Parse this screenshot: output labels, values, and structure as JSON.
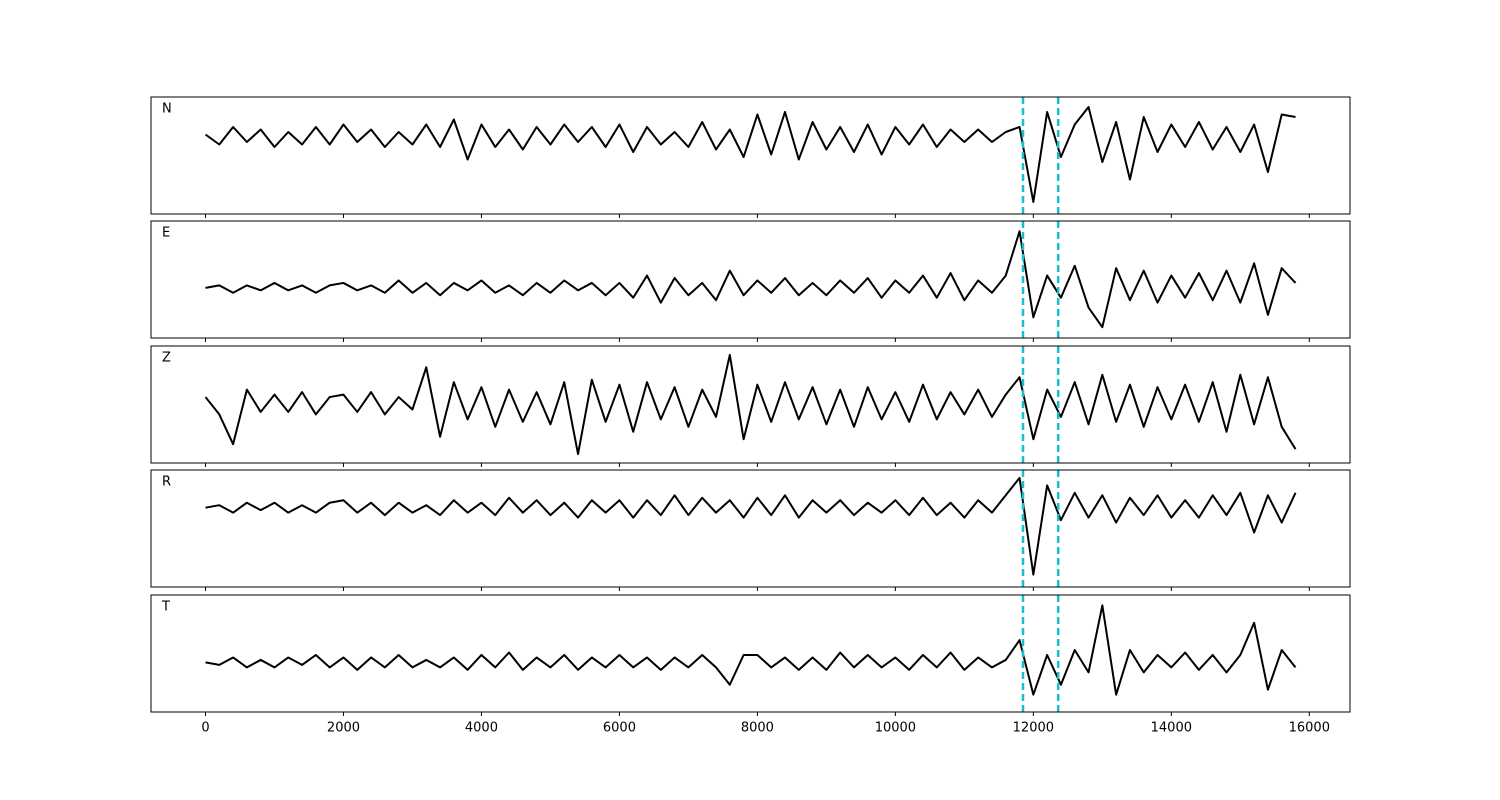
{
  "chart_data": [
    {
      "type": "line",
      "label": "N",
      "color": "#000000",
      "marker_color": "#17becf",
      "markers": [
        11850,
        12360
      ],
      "xlim": [
        -790,
        16590
      ],
      "ylim": [
        -3.08,
        1.6
      ],
      "x": [
        0,
        200,
        400,
        600,
        800,
        1000,
        1200,
        1400,
        1600,
        1800,
        2000,
        2200,
        2400,
        2600,
        2800,
        3000,
        3200,
        3400,
        3600,
        3800,
        4000,
        4200,
        4400,
        4600,
        4800,
        5000,
        5200,
        5400,
        5600,
        5800,
        6000,
        6200,
        6400,
        6600,
        6800,
        7000,
        7200,
        7400,
        7600,
        7800,
        8000,
        8200,
        8400,
        8600,
        8800,
        9000,
        9200,
        9400,
        9600,
        9800,
        10000,
        10200,
        10400,
        10600,
        10800,
        11000,
        11200,
        11400,
        11600,
        11800,
        12000,
        12200,
        12400,
        12600,
        12800,
        13000,
        13200,
        13400,
        13600,
        13800,
        14000,
        14200,
        14400,
        14600,
        14800,
        15000,
        15200,
        15400,
        15600,
        15800
      ],
      "values": [
        0.1,
        -0.3,
        0.4,
        -0.2,
        0.3,
        -0.4,
        0.2,
        -0.3,
        0.4,
        -0.3,
        0.5,
        -0.2,
        0.3,
        -0.4,
        0.2,
        -0.3,
        0.5,
        -0.4,
        0.7,
        -0.9,
        0.5,
        -0.4,
        0.3,
        -0.5,
        0.4,
        -0.3,
        0.5,
        -0.2,
        0.4,
        -0.4,
        0.5,
        -0.6,
        0.4,
        -0.3,
        0.2,
        -0.4,
        0.6,
        -0.5,
        0.3,
        -0.8,
        0.9,
        -0.7,
        1.0,
        -0.9,
        0.6,
        -0.5,
        0.4,
        -0.6,
        0.5,
        -0.7,
        0.4,
        -0.3,
        0.5,
        -0.4,
        0.3,
        -0.2,
        0.3,
        -0.2,
        0.2,
        0.4,
        -2.6,
        1.0,
        -0.8,
        0.5,
        1.2,
        -1.0,
        0.6,
        -1.7,
        0.8,
        -0.6,
        0.5,
        -0.4,
        0.6,
        -0.5,
        0.4,
        -0.6,
        0.5,
        -1.4,
        0.9,
        0.8
      ]
    },
    {
      "type": "line",
      "label": "E",
      "color": "#000000",
      "marker_color": "#17becf",
      "markers": [
        11850,
        12360
      ],
      "xlim": [
        -790,
        16590
      ],
      "ylim": [
        -2.04,
        2.72
      ],
      "x": [
        0,
        200,
        400,
        600,
        800,
        1000,
        1200,
        1400,
        1600,
        1800,
        2000,
        2200,
        2400,
        2600,
        2800,
        3000,
        3200,
        3400,
        3600,
        3800,
        4000,
        4200,
        4400,
        4600,
        4800,
        5000,
        5200,
        5400,
        5600,
        5800,
        6000,
        6200,
        6400,
        6600,
        6800,
        7000,
        7200,
        7400,
        7600,
        7800,
        8000,
        8200,
        8400,
        8600,
        8800,
        9000,
        9200,
        9400,
        9600,
        9800,
        10000,
        10200,
        10400,
        10600,
        10800,
        11000,
        11200,
        11400,
        11600,
        11800,
        12000,
        12200,
        12400,
        12600,
        12800,
        13000,
        13200,
        13400,
        13600,
        13800,
        14000,
        14200,
        14400,
        14600,
        14800,
        15000,
        15200,
        15400,
        15600,
        15800
      ],
      "values": [
        0.0,
        0.1,
        -0.2,
        0.1,
        -0.1,
        0.2,
        -0.1,
        0.1,
        -0.2,
        0.1,
        0.2,
        -0.1,
        0.1,
        -0.2,
        0.3,
        -0.2,
        0.2,
        -0.3,
        0.2,
        -0.1,
        0.3,
        -0.2,
        0.1,
        -0.3,
        0.2,
        -0.2,
        0.3,
        -0.1,
        0.2,
        -0.3,
        0.2,
        -0.4,
        0.5,
        -0.6,
        0.4,
        -0.3,
        0.2,
        -0.5,
        0.7,
        -0.3,
        0.3,
        -0.2,
        0.4,
        -0.3,
        0.2,
        -0.3,
        0.3,
        -0.2,
        0.4,
        -0.4,
        0.3,
        -0.2,
        0.5,
        -0.4,
        0.6,
        -0.5,
        0.3,
        -0.2,
        0.5,
        2.3,
        -1.2,
        0.5,
        -0.4,
        0.9,
        -0.8,
        -1.6,
        0.8,
        -0.5,
        0.7,
        -0.6,
        0.5,
        -0.4,
        0.6,
        -0.5,
        0.7,
        -0.6,
        1.0,
        -1.1,
        0.8,
        0.2
      ]
    },
    {
      "type": "line",
      "label": "Z",
      "color": "#000000",
      "marker_color": "#17becf",
      "markers": [
        11850,
        12360
      ],
      "xlim": [
        -790,
        16590
      ],
      "ylim": [
        -2.36,
        2.36
      ],
      "x": [
        0,
        200,
        400,
        600,
        800,
        1000,
        1200,
        1400,
        1600,
        1800,
        2000,
        2200,
        2400,
        2600,
        2800,
        3000,
        3200,
        3400,
        3600,
        3800,
        4000,
        4200,
        4400,
        4600,
        4800,
        5000,
        5200,
        5400,
        5600,
        5800,
        6000,
        6200,
        6400,
        6600,
        6800,
        7000,
        7200,
        7400,
        7600,
        7800,
        8000,
        8200,
        8400,
        8600,
        8800,
        9000,
        9200,
        9400,
        9600,
        9800,
        10000,
        10200,
        10400,
        10600,
        10800,
        11000,
        11200,
        11400,
        11600,
        11800,
        12000,
        12200,
        12400,
        12600,
        12800,
        13000,
        13200,
        13400,
        13600,
        13800,
        14000,
        14200,
        14400,
        14600,
        14800,
        15000,
        15200,
        15400,
        15600,
        15800
      ],
      "values": [
        0.3,
        -0.4,
        -1.6,
        0.6,
        -0.3,
        0.4,
        -0.3,
        0.5,
        -0.4,
        0.3,
        0.4,
        -0.3,
        0.5,
        -0.4,
        0.3,
        -0.2,
        1.5,
        -1.3,
        0.9,
        -0.6,
        0.7,
        -0.9,
        0.6,
        -0.7,
        0.5,
        -0.8,
        0.9,
        -2.0,
        1.0,
        -0.7,
        0.8,
        -1.1,
        0.9,
        -0.6,
        0.7,
        -0.9,
        0.6,
        -0.5,
        2.0,
        -1.4,
        0.8,
        -0.7,
        0.9,
        -0.6,
        0.7,
        -0.8,
        0.6,
        -0.9,
        0.7,
        -0.6,
        0.5,
        -0.7,
        0.8,
        -0.6,
        0.5,
        -0.4,
        0.6,
        -0.5,
        0.4,
        1.1,
        -1.4,
        0.6,
        -0.5,
        0.9,
        -0.8,
        1.2,
        -0.7,
        0.8,
        -0.9,
        0.7,
        -0.6,
        0.8,
        -0.7,
        0.9,
        -1.1,
        1.2,
        -0.8,
        1.1,
        -0.9,
        -1.8
      ]
    },
    {
      "type": "line",
      "label": "R",
      "color": "#000000",
      "marker_color": "#17becf",
      "markers": [
        11850,
        12360
      ],
      "xlim": [
        -790,
        16590
      ],
      "ylim": [
        -3.2,
        1.52
      ],
      "x": [
        0,
        200,
        400,
        600,
        800,
        1000,
        1200,
        1400,
        1600,
        1800,
        2000,
        2200,
        2400,
        2600,
        2800,
        3000,
        3200,
        3400,
        3600,
        3800,
        4000,
        4200,
        4400,
        4600,
        4800,
        5000,
        5200,
        5400,
        5600,
        5800,
        6000,
        6200,
        6400,
        6600,
        6800,
        7000,
        7200,
        7400,
        7600,
        7800,
        8000,
        8200,
        8400,
        8600,
        8800,
        9000,
        9200,
        9400,
        9600,
        9800,
        10000,
        10200,
        10400,
        10600,
        10800,
        11000,
        11200,
        11400,
        11600,
        11800,
        12000,
        12200,
        12400,
        12600,
        12800,
        13000,
        13200,
        13400,
        13600,
        13800,
        14000,
        14200,
        14400,
        14600,
        14800,
        15000,
        15200,
        15400,
        15600,
        15800
      ],
      "values": [
        0.0,
        0.1,
        -0.2,
        0.2,
        -0.1,
        0.2,
        -0.2,
        0.1,
        -0.2,
        0.2,
        0.3,
        -0.2,
        0.2,
        -0.3,
        0.2,
        -0.2,
        0.1,
        -0.3,
        0.3,
        -0.2,
        0.2,
        -0.3,
        0.4,
        -0.2,
        0.3,
        -0.3,
        0.2,
        -0.4,
        0.3,
        -0.2,
        0.3,
        -0.4,
        0.3,
        -0.3,
        0.5,
        -0.3,
        0.4,
        -0.2,
        0.3,
        -0.4,
        0.4,
        -0.3,
        0.5,
        -0.4,
        0.3,
        -0.2,
        0.3,
        -0.3,
        0.2,
        -0.2,
        0.3,
        -0.3,
        0.4,
        -0.3,
        0.2,
        -0.4,
        0.3,
        -0.2,
        0.5,
        1.2,
        -2.7,
        0.9,
        -0.5,
        0.6,
        -0.4,
        0.5,
        -0.6,
        0.4,
        -0.3,
        0.5,
        -0.4,
        0.3,
        -0.4,
        0.5,
        -0.3,
        0.6,
        -1.0,
        0.5,
        -0.6,
        0.6
      ]
    },
    {
      "type": "line",
      "label": "T",
      "color": "#000000",
      "marker_color": "#17becf",
      "markers": [
        11850,
        12360
      ],
      "xlim": [
        -790,
        16590
      ],
      "ylim": [
        -2.0,
        2.72
      ],
      "xticks": [
        0,
        2000,
        4000,
        6000,
        8000,
        10000,
        12000,
        14000,
        16000
      ],
      "x": [
        0,
        200,
        400,
        600,
        800,
        1000,
        1200,
        1400,
        1600,
        1800,
        2000,
        2200,
        2400,
        2600,
        2800,
        3000,
        3200,
        3400,
        3600,
        3800,
        4000,
        4200,
        4400,
        4600,
        4800,
        5000,
        5200,
        5400,
        5600,
        5800,
        6000,
        6200,
        6400,
        6600,
        6800,
        7000,
        7200,
        7400,
        7600,
        7800,
        8000,
        8200,
        8400,
        8600,
        8800,
        9000,
        9200,
        9400,
        9600,
        9800,
        10000,
        10200,
        10400,
        10600,
        10800,
        11000,
        11200,
        11400,
        11600,
        11800,
        12000,
        12200,
        12400,
        12600,
        12800,
        13000,
        13200,
        13400,
        13600,
        13800,
        14000,
        14200,
        14400,
        14600,
        14800,
        15000,
        15200,
        15400,
        15600,
        15800
      ],
      "values": [
        0.0,
        -0.1,
        0.2,
        -0.2,
        0.1,
        -0.2,
        0.2,
        -0.1,
        0.3,
        -0.2,
        0.2,
        -0.3,
        0.2,
        -0.2,
        0.3,
        -0.2,
        0.1,
        -0.2,
        0.2,
        -0.3,
        0.3,
        -0.2,
        0.4,
        -0.3,
        0.2,
        -0.2,
        0.3,
        -0.3,
        0.2,
        -0.2,
        0.3,
        -0.2,
        0.2,
        -0.3,
        0.2,
        -0.2,
        0.3,
        -0.2,
        -0.9,
        0.3,
        0.3,
        -0.2,
        0.2,
        -0.3,
        0.2,
        -0.3,
        0.4,
        -0.2,
        0.3,
        -0.2,
        0.2,
        -0.3,
        0.3,
        -0.2,
        0.4,
        -0.3,
        0.2,
        -0.2,
        0.1,
        0.9,
        -1.3,
        0.3,
        -0.9,
        0.5,
        -0.4,
        2.3,
        -1.3,
        0.5,
        -0.4,
        0.3,
        -0.2,
        0.4,
        -0.3,
        0.3,
        -0.4,
        0.3,
        1.6,
        -1.1,
        0.5,
        -0.2
      ]
    }
  ]
}
